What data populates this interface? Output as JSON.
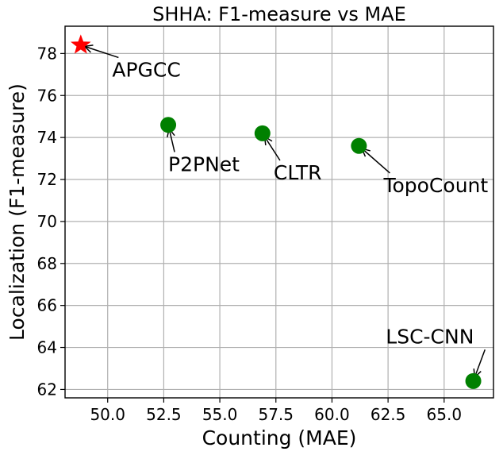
{
  "chart_data": {
    "type": "scatter",
    "title": "SHHA: F1-measure vs MAE",
    "xlabel": "Counting (MAE)",
    "ylabel": "Localization (F1-measure)",
    "xlim": [
      48.1,
      67.2
    ],
    "ylim": [
      61.6,
      79.3
    ],
    "xticks": [
      50.0,
      52.5,
      55.0,
      57.5,
      60.0,
      62.5,
      65.0
    ],
    "xtick_labels": [
      "50.0",
      "52.5",
      "55.0",
      "57.5",
      "60.0",
      "62.5",
      "65.0"
    ],
    "yticks": [
      62,
      64,
      66,
      68,
      70,
      72,
      74,
      76,
      78
    ],
    "ytick_labels": [
      "62",
      "64",
      "66",
      "68",
      "70",
      "72",
      "74",
      "76",
      "78"
    ],
    "grid": true,
    "points": [
      {
        "label": "APGCC",
        "x": 48.8,
        "y": 78.4,
        "marker": "star",
        "color": "#ff0000",
        "label_x": 50.2,
        "label_y": 76.9
      },
      {
        "label": "P2PNet",
        "x": 52.7,
        "y": 74.6,
        "marker": "circle",
        "color": "#008000",
        "label_x": 52.7,
        "label_y": 72.4
      },
      {
        "label": "CLTR",
        "x": 56.9,
        "y": 74.2,
        "marker": "circle",
        "color": "#008000",
        "label_x": 57.4,
        "label_y": 72.0
      },
      {
        "label": "TopoCount",
        "x": 61.2,
        "y": 73.6,
        "marker": "circle",
        "color": "#008000",
        "label_x": 62.3,
        "label_y": 71.4
      },
      {
        "label": "LSC-CNN",
        "x": 66.3,
        "y": 62.4,
        "marker": "circle",
        "color": "#008000",
        "label_x": 62.4,
        "label_y": 64.2
      }
    ]
  }
}
